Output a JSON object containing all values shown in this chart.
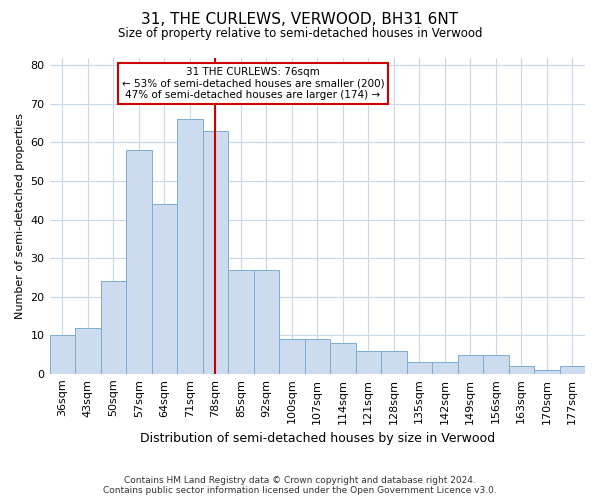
{
  "title": "31, THE CURLEWS, VERWOOD, BH31 6NT",
  "subtitle": "Size of property relative to semi-detached houses in Verwood",
  "xlabel": "Distribution of semi-detached houses by size in Verwood",
  "ylabel": "Number of semi-detached properties",
  "categories": [
    "36sqm",
    "43sqm",
    "50sqm",
    "57sqm",
    "64sqm",
    "71sqm",
    "78sqm",
    "85sqm",
    "92sqm",
    "100sqm",
    "107sqm",
    "114sqm",
    "121sqm",
    "128sqm",
    "135sqm",
    "142sqm",
    "149sqm",
    "156sqm",
    "163sqm",
    "170sqm",
    "177sqm"
  ],
  "values": [
    10,
    12,
    24,
    58,
    44,
    66,
    63,
    27,
    27,
    9,
    9,
    8,
    6,
    6,
    3,
    3,
    5,
    5,
    2,
    1,
    2
  ],
  "bar_color": "#ccdcee",
  "bar_edge_color": "#7badd4",
  "vline_color": "#cc0000",
  "vline_pos": 6.0,
  "annotation_text1": "31 THE CURLEWS: 76sqm",
  "annotation_text2": "← 53% of semi-detached houses are smaller (200)",
  "annotation_text3": "47% of semi-detached houses are larger (174) →",
  "annotation_box_facecolor": "#ffffff",
  "annotation_box_edgecolor": "#cc0000",
  "ylim": [
    0,
    82
  ],
  "yticks": [
    0,
    10,
    20,
    30,
    40,
    50,
    60,
    70,
    80
  ],
  "footer1": "Contains HM Land Registry data © Crown copyright and database right 2024.",
  "footer2": "Contains public sector information licensed under the Open Government Licence v3.0.",
  "background_color": "#ffffff",
  "grid_color": "#c8d8e8",
  "fig_width": 6.0,
  "fig_height": 5.0,
  "dpi": 100
}
